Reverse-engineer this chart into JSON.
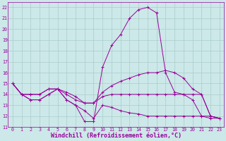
{
  "xlabel": "Windchill (Refroidissement éolien,°C)",
  "background_color": "#cce8e8",
  "grid_color": "#aacccc",
  "line_color": "#990099",
  "x": [
    0,
    1,
    2,
    3,
    4,
    5,
    6,
    7,
    8,
    9,
    10,
    11,
    12,
    13,
    14,
    15,
    16,
    17,
    18,
    19,
    20,
    21,
    22,
    23
  ],
  "lines": [
    [
      15,
      14,
      13.5,
      13.5,
      14,
      14.5,
      13.5,
      13,
      11.5,
      11.5,
      16.5,
      18.5,
      19.5,
      21.0,
      21.8,
      22.0,
      21.5,
      16.0,
      14.2,
      14.0,
      13.5,
      12.0,
      11.8,
      11.8
    ],
    [
      15,
      14,
      14,
      14,
      14.5,
      14.5,
      14,
      13.5,
      13.2,
      13.2,
      14.2,
      14.8,
      15.2,
      15.5,
      15.8,
      16.0,
      16.0,
      16.2,
      16.0,
      15.5,
      14.5,
      14.0,
      12.0,
      11.8
    ],
    [
      15,
      14,
      13.5,
      13.5,
      14,
      14.5,
      14.2,
      13.8,
      13.2,
      13.2,
      13.8,
      14.0,
      14.0,
      14.0,
      14.0,
      14.0,
      14.0,
      14.0,
      14.0,
      14.0,
      14.0,
      14.0,
      12.0,
      11.8
    ],
    [
      15,
      14,
      14,
      14,
      14.5,
      14.5,
      13.5,
      13.0,
      12.5,
      11.8,
      13.0,
      12.8,
      12.5,
      12.3,
      12.2,
      12.0,
      12.0,
      12.0,
      12.0,
      12.0,
      12.0,
      12.0,
      12.0,
      11.8
    ]
  ],
  "ylim": [
    11,
    22.5
  ],
  "xlim": [
    -0.5,
    23.5
  ],
  "yticks": [
    11,
    12,
    13,
    14,
    15,
    16,
    17,
    18,
    19,
    20,
    21,
    22
  ],
  "xticks": [
    0,
    1,
    2,
    3,
    4,
    5,
    6,
    7,
    8,
    9,
    10,
    11,
    12,
    13,
    14,
    15,
    16,
    17,
    18,
    19,
    20,
    21,
    22,
    23
  ],
  "tick_fontsize": 4.8,
  "xlabel_fontsize": 6.0
}
